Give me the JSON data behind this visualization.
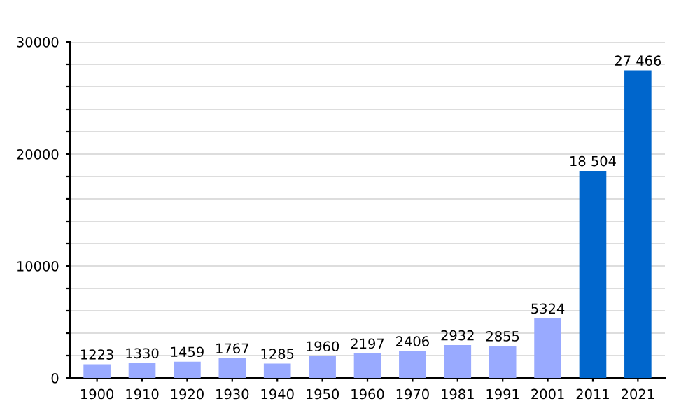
{
  "chart_data": {
    "type": "bar",
    "categories": [
      "1900",
      "1910",
      "1920",
      "1930",
      "1940",
      "1950",
      "1960",
      "1970",
      "1981",
      "1991",
      "2001",
      "2011",
      "2021"
    ],
    "values": [
      1223,
      1330,
      1459,
      1767,
      1285,
      1960,
      2197,
      2406,
      2932,
      2855,
      5324,
      18504,
      27466
    ],
    "value_labels": [
      "1223",
      "1330",
      "1459",
      "1767",
      "1285",
      "1960",
      "2197",
      "2406",
      "2932",
      "2855",
      "5324",
      "18 504",
      "27 466"
    ],
    "colors": [
      "#99aaff",
      "#99aaff",
      "#99aaff",
      "#99aaff",
      "#99aaff",
      "#99aaff",
      "#99aaff",
      "#99aaff",
      "#99aaff",
      "#99aaff",
      "#99aaff",
      "#0066cc",
      "#0066cc"
    ],
    "ylim": [
      0,
      30000
    ],
    "yticks": [
      0,
      {
        "value": 2000,
        "label": null
      },
      {
        "value": 4000,
        "label": null
      },
      {
        "value": 6000,
        "label": null
      },
      {
        "value": 8000,
        "label": null
      },
      10000,
      {
        "value": 12000,
        "label": null
      },
      {
        "value": 14000,
        "label": null
      },
      {
        "value": 16000,
        "label": null
      },
      {
        "value": 18000,
        "label": null
      },
      20000,
      {
        "value": 22000,
        "label": null
      },
      {
        "value": 24000,
        "label": null
      },
      {
        "value": 26000,
        "label": null
      },
      {
        "value": 28000,
        "label": null
      },
      30000
    ],
    "grid": "y"
  }
}
